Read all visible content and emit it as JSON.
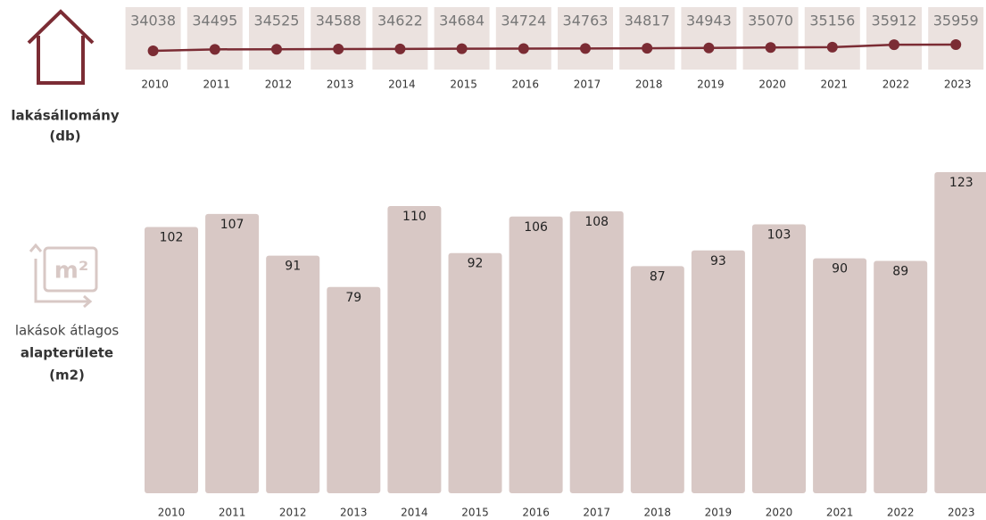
{
  "chart_data": [
    {
      "type": "line",
      "label_lines": [
        "lakásállomány",
        "(db)"
      ],
      "categories": [
        "2010",
        "2011",
        "2012",
        "2013",
        "2014",
        "2015",
        "2016",
        "2017",
        "2018",
        "2019",
        "2020",
        "2021",
        "2022",
        "2023"
      ],
      "values": [
        34038,
        34495,
        34525,
        34588,
        34622,
        34684,
        34724,
        34763,
        34817,
        34943,
        35070,
        35156,
        35912,
        35959
      ],
      "color": "#7b2c34"
    },
    {
      "type": "bar",
      "icon_text": "m²",
      "label_lines": [
        "lakások átlagos",
        "alapterülete",
        "(m2)"
      ],
      "categories": [
        "2010",
        "2011",
        "2012",
        "2013",
        "2014",
        "2015",
        "2016",
        "2017",
        "2018",
        "2019",
        "2020",
        "2021",
        "2022",
        "2023"
      ],
      "values": [
        102,
        107,
        91,
        79,
        110,
        92,
        106,
        108,
        87,
        93,
        103,
        90,
        89,
        123
      ],
      "color": "#d8c8c5"
    }
  ]
}
